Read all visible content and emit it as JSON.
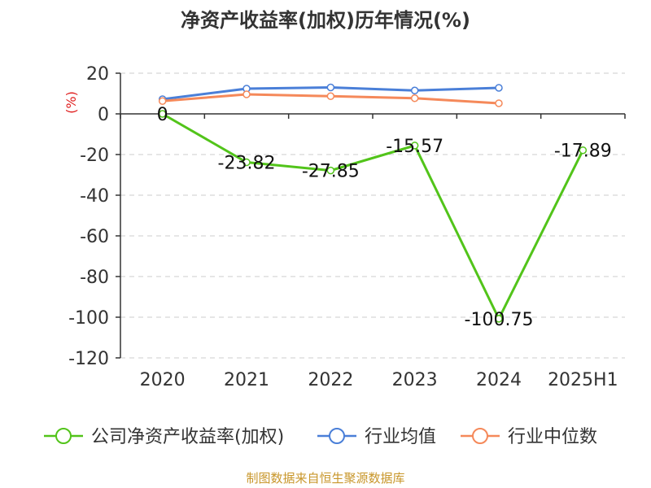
{
  "chart_data": {
    "type": "line",
    "title": "净资产收益率(加权)历年情况(%)",
    "ylabel": "(%)",
    "xlabel": "",
    "categories": [
      "2020",
      "2021",
      "2022",
      "2023",
      "2024",
      "2025H1"
    ],
    "ylim": [
      -120,
      20
    ],
    "yticks": [
      20,
      0,
      -20,
      -40,
      -60,
      -80,
      -100,
      -120
    ],
    "grid": true,
    "legend_position": "bottom",
    "series": [
      {
        "name": "公司净资产收益率(加权)",
        "color": "#52c41a",
        "values": [
          0,
          -23.82,
          -27.85,
          -15.57,
          -100.75,
          -17.89
        ],
        "labels": [
          "0",
          "-23.82",
          "-27.85",
          "-15.57",
          "-100.75",
          "-17.89"
        ]
      },
      {
        "name": "行业均值",
        "color": "#4a7fd8",
        "values": [
          7.2,
          12.4,
          13.0,
          11.5,
          12.8,
          null
        ]
      },
      {
        "name": "行业中位数",
        "color": "#f5895a",
        "values": [
          6.3,
          9.6,
          8.7,
          7.7,
          5.2,
          null
        ]
      }
    ]
  },
  "source": "制图数据来自恒生聚源数据库"
}
